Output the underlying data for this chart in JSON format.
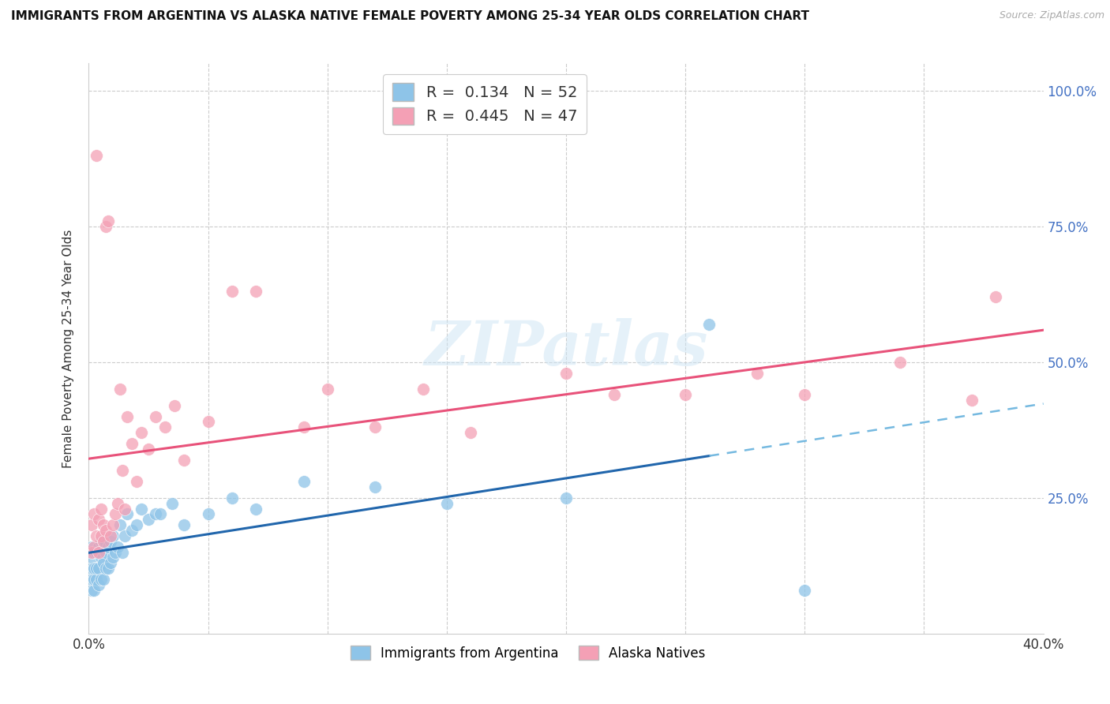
{
  "title": "IMMIGRANTS FROM ARGENTINA VS ALASKA NATIVE FEMALE POVERTY AMONG 25-34 YEAR OLDS CORRELATION CHART",
  "source": "Source: ZipAtlas.com",
  "ylabel": "Female Poverty Among 25-34 Year Olds",
  "x_min": 0.0,
  "x_max": 0.4,
  "y_min": 0.0,
  "y_max": 1.05,
  "y_ticks": [
    0.0,
    0.25,
    0.5,
    0.75,
    1.0
  ],
  "blue_color": "#8ec4e8",
  "pink_color": "#f4a0b5",
  "blue_line_color": "#2166ac",
  "blue_dash_color": "#75b9e0",
  "pink_line_color": "#e8527a",
  "r_blue": 0.134,
  "n_blue": 52,
  "r_pink": 0.445,
  "n_pink": 47,
  "watermark": "ZIPatlas",
  "blue_scatter_x": [
    0.001,
    0.001,
    0.001,
    0.001,
    0.001,
    0.002,
    0.002,
    0.002,
    0.002,
    0.003,
    0.003,
    0.003,
    0.004,
    0.004,
    0.004,
    0.005,
    0.005,
    0.005,
    0.006,
    0.006,
    0.006,
    0.007,
    0.007,
    0.008,
    0.008,
    0.009,
    0.009,
    0.01,
    0.01,
    0.011,
    0.012,
    0.013,
    0.014,
    0.015,
    0.016,
    0.018,
    0.02,
    0.022,
    0.025,
    0.028,
    0.03,
    0.035,
    0.04,
    0.05,
    0.06,
    0.07,
    0.09,
    0.12,
    0.15,
    0.2,
    0.26,
    0.3
  ],
  "blue_scatter_y": [
    0.08,
    0.1,
    0.12,
    0.14,
    0.16,
    0.08,
    0.1,
    0.12,
    0.15,
    0.1,
    0.12,
    0.15,
    0.09,
    0.12,
    0.16,
    0.1,
    0.14,
    0.17,
    0.1,
    0.13,
    0.17,
    0.12,
    0.15,
    0.12,
    0.16,
    0.13,
    0.17,
    0.14,
    0.18,
    0.15,
    0.16,
    0.2,
    0.15,
    0.18,
    0.22,
    0.19,
    0.2,
    0.23,
    0.21,
    0.22,
    0.22,
    0.24,
    0.2,
    0.22,
    0.25,
    0.23,
    0.28,
    0.27,
    0.24,
    0.25,
    0.57,
    0.08
  ],
  "pink_scatter_x": [
    0.001,
    0.001,
    0.002,
    0.002,
    0.003,
    0.003,
    0.004,
    0.004,
    0.005,
    0.005,
    0.006,
    0.006,
    0.007,
    0.007,
    0.008,
    0.009,
    0.01,
    0.011,
    0.012,
    0.013,
    0.014,
    0.015,
    0.016,
    0.018,
    0.02,
    0.022,
    0.025,
    0.028,
    0.032,
    0.036,
    0.04,
    0.05,
    0.06,
    0.07,
    0.09,
    0.1,
    0.12,
    0.14,
    0.16,
    0.2,
    0.22,
    0.25,
    0.28,
    0.3,
    0.34,
    0.37,
    0.38
  ],
  "pink_scatter_y": [
    0.15,
    0.2,
    0.16,
    0.22,
    0.18,
    0.88,
    0.15,
    0.21,
    0.18,
    0.23,
    0.17,
    0.2,
    0.19,
    0.75,
    0.76,
    0.18,
    0.2,
    0.22,
    0.24,
    0.45,
    0.3,
    0.23,
    0.4,
    0.35,
    0.28,
    0.37,
    0.34,
    0.4,
    0.38,
    0.42,
    0.32,
    0.39,
    0.63,
    0.63,
    0.38,
    0.45,
    0.38,
    0.45,
    0.37,
    0.48,
    0.44,
    0.44,
    0.48,
    0.44,
    0.5,
    0.43,
    0.62
  ],
  "legend_label_blue": "Immigrants from Argentina",
  "legend_label_pink": "Alaska Natives"
}
